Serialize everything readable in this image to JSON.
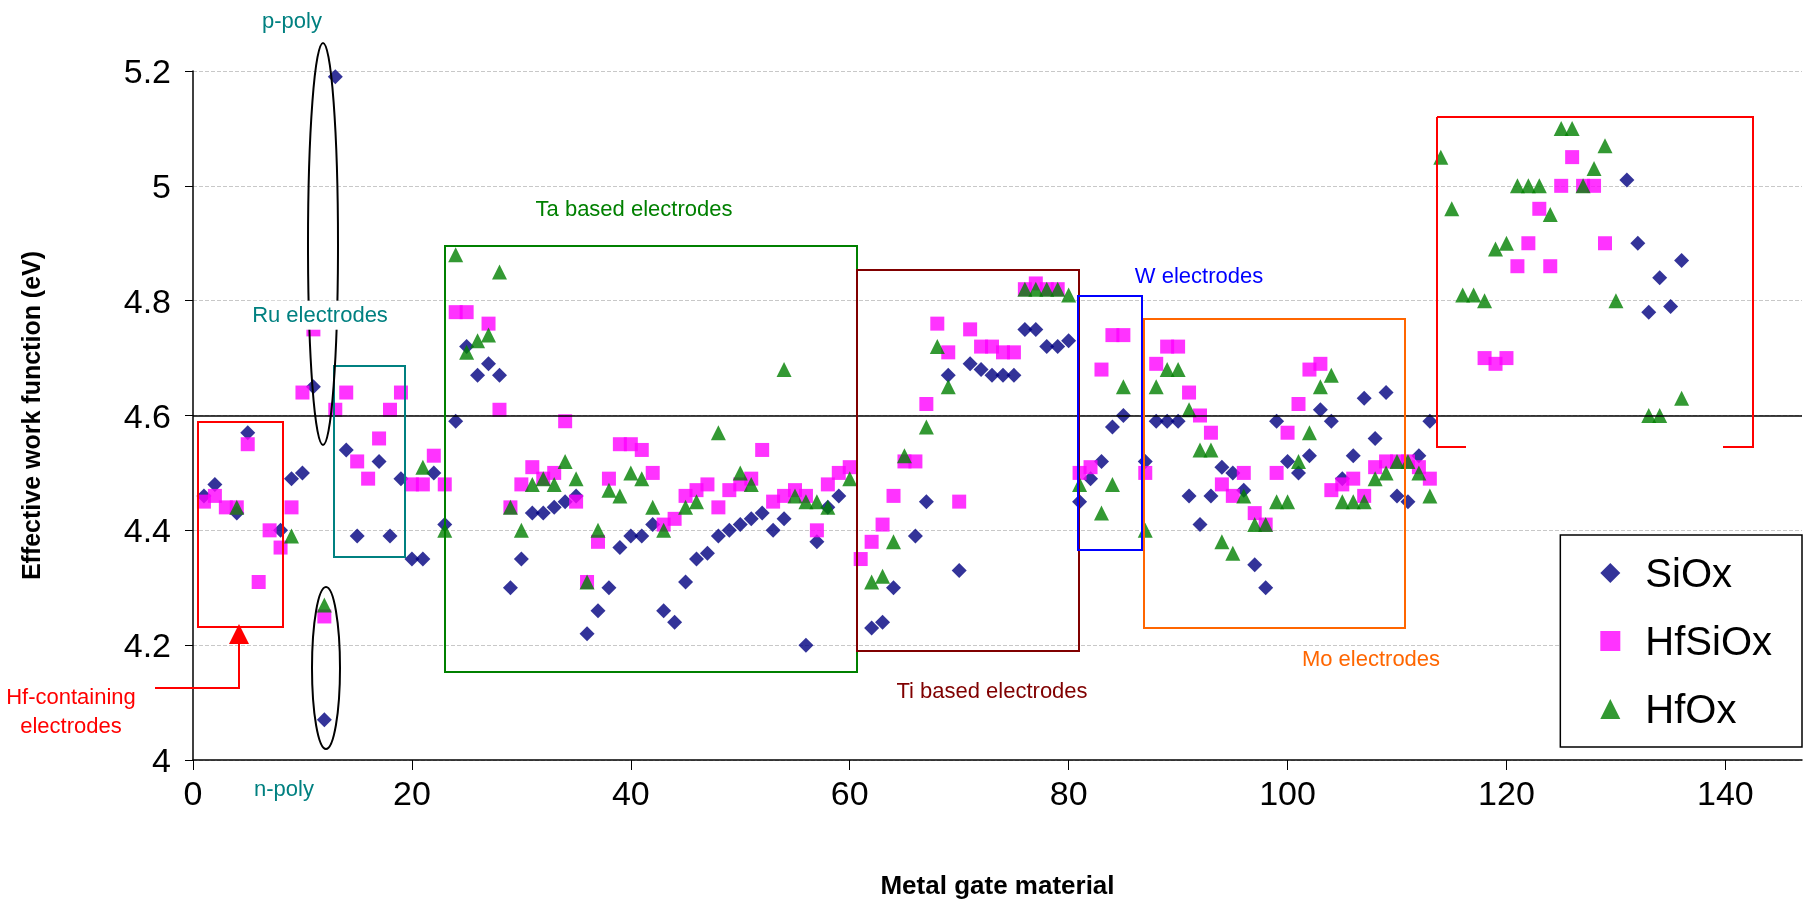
{
  "chart_data": {
    "type": "scatter",
    "xlabel": "Metal gate material",
    "ylabel": "Effective work function (eV)",
    "xlim": [
      0,
      147
    ],
    "xticks": [
      0,
      20,
      40,
      60,
      80,
      100,
      120,
      140
    ],
    "ylim": [
      4,
      5.2
    ],
    "yticks": [
      4,
      4.2,
      4.4,
      4.6,
      4.8,
      5,
      5.2
    ],
    "grid": "y",
    "legend": "bottom right",
    "ref_lines": [
      {
        "axis": "y",
        "value": 4.6,
        "color": "#000000",
        "line_style": "solid"
      }
    ],
    "annotations": [
      "Hf-containing electrodes",
      "p-poly",
      "n-poly",
      "Ru electrodes",
      "Ta based electrodes",
      "Ti based electrodes",
      "W electrodes",
      "Mo electrodes"
    ],
    "series": [
      {
        "name": "SiOx",
        "color": "#000080",
        "marker": "diamond",
        "x": [
          1,
          2,
          4,
          5,
          8,
          9,
          10,
          11,
          12,
          13,
          14,
          15,
          17,
          18,
          19,
          20,
          21,
          22,
          23,
          24,
          25,
          26,
          27,
          28,
          29,
          30,
          31,
          32,
          33,
          34,
          35,
          36,
          37,
          38,
          39,
          40,
          41,
          42,
          43,
          44,
          45,
          46,
          47,
          48,
          49,
          50,
          51,
          52,
          53,
          54,
          56,
          57,
          58,
          59,
          62,
          63,
          64,
          66,
          67,
          69,
          70,
          71,
          72,
          73,
          74,
          75,
          76,
          77,
          78,
          79,
          80,
          81,
          82,
          83,
          84,
          85,
          87,
          88,
          89,
          90,
          91,
          92,
          93,
          94,
          95,
          96,
          97,
          98,
          99,
          100,
          101,
          102,
          103,
          104,
          105,
          106,
          107,
          108,
          109,
          110,
          111,
          112,
          113,
          131,
          132,
          133,
          134,
          135,
          136
        ],
        "values": [
          4.46,
          4.48,
          4.43,
          4.57,
          4.4,
          4.49,
          4.5,
          4.65,
          4.07,
          5.19,
          4.54,
          4.39,
          4.52,
          4.39,
          4.49,
          4.35,
          4.35,
          4.5,
          4.41,
          4.59,
          4.72,
          4.67,
          4.69,
          4.67,
          4.3,
          4.35,
          4.43,
          4.43,
          4.44,
          4.45,
          4.46,
          4.22,
          4.26,
          4.3,
          4.37,
          4.39,
          4.39,
          4.41,
          4.26,
          4.24,
          4.31,
          4.35,
          4.36,
          4.39,
          4.4,
          4.41,
          4.42,
          4.43,
          4.4,
          4.42,
          4.2,
          4.38,
          4.44,
          4.46,
          4.23,
          4.24,
          4.3,
          4.39,
          4.45,
          4.67,
          4.33,
          4.69,
          4.68,
          4.67,
          4.67,
          4.67,
          4.75,
          4.75,
          4.72,
          4.72,
          4.73,
          4.45,
          4.49,
          4.52,
          4.58,
          4.6,
          4.52,
          4.59,
          4.59,
          4.59,
          4.46,
          4.41,
          4.46,
          4.51,
          4.5,
          4.47,
          4.34,
          4.3,
          4.59,
          4.52,
          4.5,
          4.53,
          4.61,
          4.59,
          4.49,
          4.53,
          4.63,
          4.56,
          4.64,
          4.46,
          4.45,
          4.53,
          4.59,
          5.01,
          4.9,
          4.78,
          4.84,
          4.79,
          4.87
        ]
      },
      {
        "name": "HfSiOx",
        "color": "#ff00ff",
        "marker": "square",
        "x": [
          1,
          2,
          3,
          4,
          5,
          6,
          7,
          8,
          9,
          10,
          11,
          12,
          13,
          14,
          15,
          16,
          17,
          18,
          19,
          20,
          21,
          22,
          23,
          24,
          25,
          27,
          28,
          29,
          30,
          31,
          32,
          33,
          34,
          35,
          36,
          37,
          38,
          39,
          40,
          41,
          42,
          43,
          44,
          45,
          46,
          47,
          48,
          49,
          50,
          51,
          52,
          53,
          54,
          55,
          56,
          57,
          58,
          59,
          60,
          61,
          62,
          63,
          64,
          65,
          66,
          67,
          68,
          69,
          70,
          71,
          72,
          73,
          74,
          75,
          76,
          77,
          78,
          79,
          81,
          82,
          83,
          84,
          85,
          87,
          88,
          89,
          90,
          91,
          92,
          93,
          94,
          95,
          96,
          97,
          98,
          99,
          100,
          101,
          102,
          103,
          104,
          105,
          106,
          107,
          108,
          109,
          110,
          111,
          112,
          113,
          118,
          119,
          120,
          121,
          122,
          123,
          124,
          125,
          126,
          127,
          128,
          129
        ],
        "values": [
          4.45,
          4.46,
          4.44,
          4.44,
          4.55,
          4.31,
          4.4,
          4.37,
          4.44,
          4.64,
          4.75,
          4.25,
          4.61,
          4.64,
          4.52,
          4.49,
          4.56,
          4.61,
          4.64,
          4.48,
          4.48,
          4.53,
          4.48,
          4.78,
          4.78,
          4.76,
          4.61,
          4.44,
          4.48,
          4.51,
          4.49,
          4.5,
          4.59,
          4.45,
          4.31,
          4.38,
          4.49,
          4.55,
          4.55,
          4.54,
          4.5,
          4.41,
          4.42,
          4.46,
          4.47,
          4.48,
          4.44,
          4.47,
          4.48,
          4.49,
          4.54,
          4.45,
          4.46,
          4.47,
          4.46,
          4.4,
          4.48,
          4.5,
          4.51,
          4.35,
          4.38,
          4.41,
          4.46,
          4.52,
          4.52,
          4.62,
          4.76,
          4.71,
          4.45,
          4.75,
          4.72,
          4.72,
          4.71,
          4.71,
          4.82,
          4.83,
          4.82,
          4.82,
          4.5,
          4.51,
          4.68,
          4.74,
          4.74,
          4.5,
          4.69,
          4.72,
          4.72,
          4.64,
          4.6,
          4.57,
          4.48,
          4.46,
          4.5,
          4.43,
          4.41,
          4.5,
          4.57,
          4.62,
          4.68,
          4.69,
          4.47,
          4.48,
          4.49,
          4.46,
          4.51,
          4.52,
          4.52,
          4.52,
          4.51,
          4.49,
          4.7,
          4.69,
          4.7,
          4.86,
          4.9,
          4.96,
          4.86,
          5.0,
          5.05,
          5.0,
          5.0,
          4.9
        ]
      },
      {
        "name": "HfOx",
        "color": "#008000",
        "marker": "triangle",
        "x": [
          4,
          9,
          12,
          21,
          23,
          24,
          25,
          26,
          27,
          28,
          29,
          30,
          31,
          32,
          33,
          34,
          35,
          36,
          37,
          38,
          39,
          40,
          41,
          42,
          43,
          45,
          46,
          48,
          50,
          51,
          54,
          55,
          56,
          57,
          58,
          60,
          62,
          63,
          64,
          65,
          67,
          68,
          69,
          76,
          77,
          78,
          79,
          80,
          81,
          83,
          84,
          85,
          87,
          88,
          89,
          90,
          91,
          92,
          93,
          94,
          95,
          96,
          97,
          98,
          99,
          100,
          101,
          102,
          103,
          104,
          105,
          106,
          107,
          108,
          109,
          110,
          111,
          112,
          113,
          114,
          115,
          116,
          117,
          118,
          119,
          120,
          121,
          122,
          123,
          124,
          125,
          126,
          127,
          128,
          129,
          130,
          133,
          134,
          136
        ],
        "values": [
          4.44,
          4.39,
          4.27,
          4.51,
          4.4,
          4.88,
          4.71,
          4.73,
          4.74,
          4.85,
          4.44,
          4.4,
          4.48,
          4.49,
          4.48,
          4.52,
          4.49,
          4.31,
          4.4,
          4.47,
          4.46,
          4.5,
          4.49,
          4.44,
          4.4,
          4.44,
          4.45,
          4.57,
          4.5,
          4.48,
          4.68,
          4.46,
          4.45,
          4.45,
          4.44,
          4.49,
          4.31,
          4.32,
          4.38,
          4.53,
          4.58,
          4.72,
          4.65,
          4.82,
          4.82,
          4.82,
          4.82,
          4.81,
          4.48,
          4.43,
          4.48,
          4.65,
          4.4,
          4.65,
          4.68,
          4.68,
          4.61,
          4.54,
          4.54,
          4.38,
          4.36,
          4.46,
          4.41,
          4.41,
          4.45,
          4.45,
          4.52,
          4.57,
          4.65,
          4.67,
          4.45,
          4.45,
          4.45,
          4.49,
          4.5,
          4.52,
          4.52,
          4.5,
          4.46,
          5.05,
          4.96,
          4.81,
          4.81,
          4.8,
          4.89,
          4.9,
          5.0,
          5.0,
          5.0,
          4.95,
          5.1,
          5.1,
          5.0,
          5.03,
          5.07,
          4.8,
          4.6,
          4.6,
          4.63
        ]
      }
    ]
  }
}
